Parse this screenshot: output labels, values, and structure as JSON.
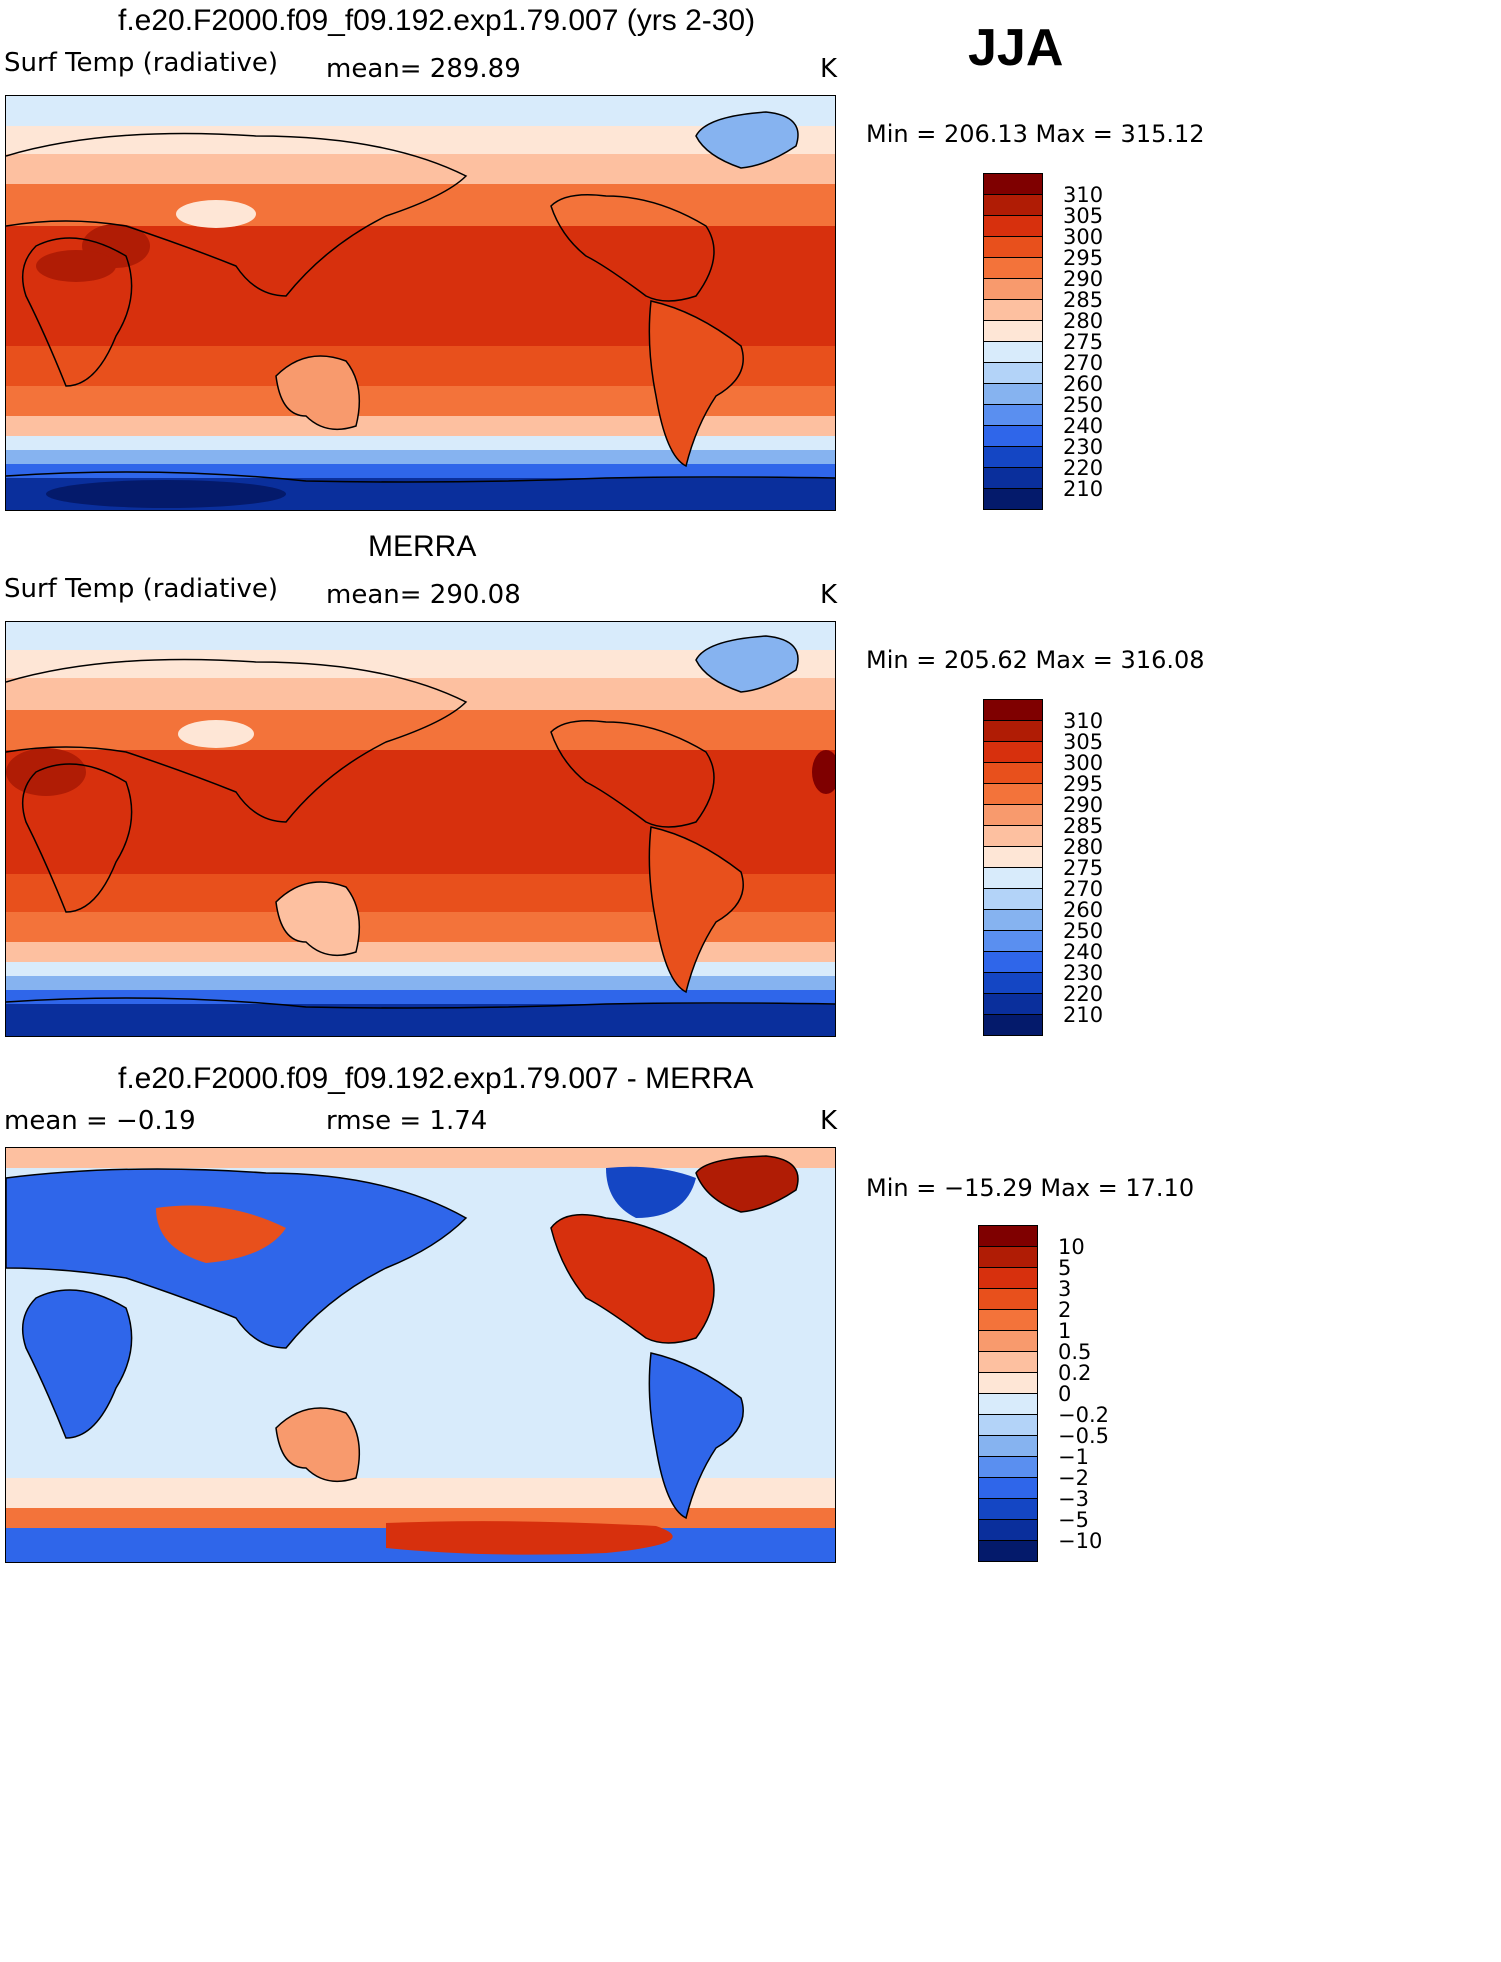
{
  "season": "JJA",
  "panels": [
    {
      "title": "f.e20.F2000.f09_f09.192.exp1.79.007 (yrs 2-30)",
      "left_label": "Surf Temp (radiative)",
      "center_label": "mean= 289.89",
      "units": "K",
      "minmax": "Min = 206.13 Max = 315.12",
      "colorbar_labels": [
        "310",
        "305",
        "300",
        "295",
        "290",
        "285",
        "280",
        "275",
        "270",
        "260",
        "250",
        "240",
        "230",
        "220",
        "210"
      ]
    },
    {
      "title": "MERRA",
      "left_label": "Surf Temp (radiative)",
      "center_label": "mean= 290.08",
      "units": "K",
      "minmax": "Min = 205.62 Max = 316.08",
      "colorbar_labels": [
        "310",
        "305",
        "300",
        "295",
        "290",
        "285",
        "280",
        "275",
        "270",
        "260",
        "250",
        "240",
        "230",
        "220",
        "210"
      ]
    },
    {
      "title": "f.e20.F2000.f09_f09.192.exp1.79.007 - MERRA",
      "left_label": "mean = −0.19",
      "center_label": "rmse = 1.74",
      "units": "K",
      "minmax": "Min = −15.29 Max = 17.10",
      "colorbar_labels": [
        "10",
        "5",
        "3",
        "2",
        "1",
        "0.5",
        "0.2",
        "0",
        "−0.2",
        "−0.5",
        "−1",
        "−2",
        "−3",
        "−5",
        "−10"
      ]
    }
  ],
  "colors": {
    "temp_scale": [
      "#7f0000",
      "#b01c05",
      "#d7300d",
      "#e8501c",
      "#f3733a",
      "#f89a6d",
      "#fdc0a0",
      "#fee6d6",
      "#d8ebfb",
      "#b3d3f8",
      "#86b3f0",
      "#5a8ff0",
      "#2f66ea",
      "#1446c4",
      "#0a2f9c",
      "#041a6b"
    ],
    "diff_scale": [
      "#7f0000",
      "#b01c05",
      "#d7300d",
      "#e8501c",
      "#f3733a",
      "#f89a6d",
      "#fdc0a0",
      "#fee6d6",
      "#d8ebfb",
      "#b3d3f8",
      "#86b3f0",
      "#5a8ff0",
      "#2f66ea",
      "#1446c4",
      "#0a2f9c",
      "#041a6b"
    ]
  }
}
